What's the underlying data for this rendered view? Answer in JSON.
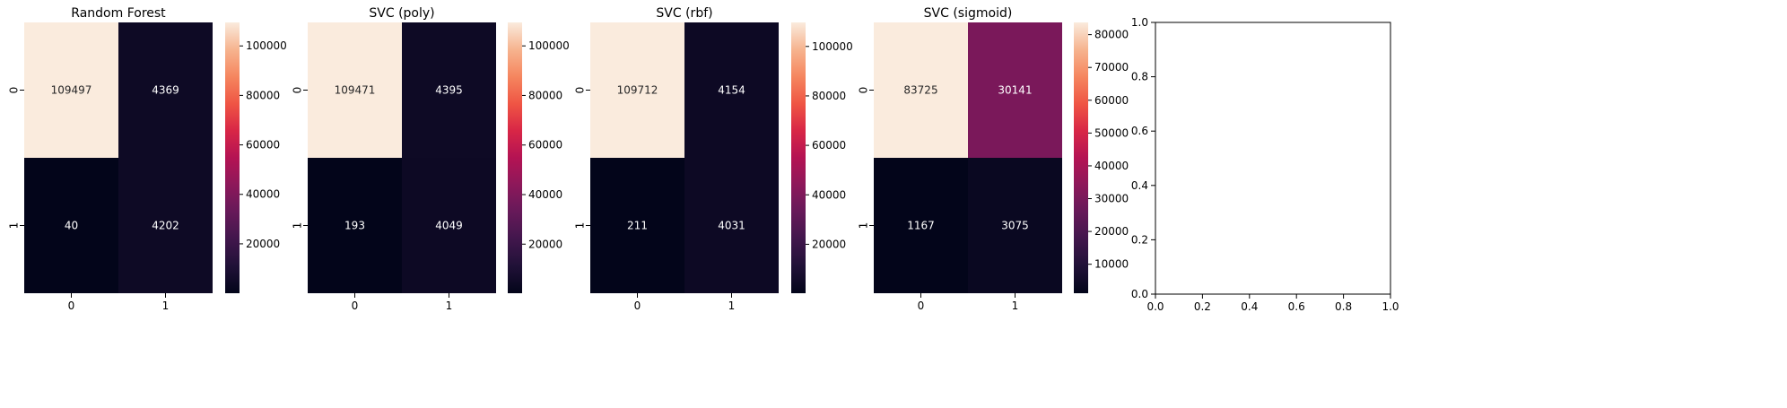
{
  "chart_data": [
    {
      "type": "heatmap",
      "title": "Random Forest",
      "x_ticks": [
        "0",
        "1"
      ],
      "y_ticks": [
        "0",
        "1"
      ],
      "values": [
        [
          109497,
          4369
        ],
        [
          40,
          4202
        ]
      ],
      "annotations": [
        [
          "109497",
          "4369"
        ],
        [
          "40",
          "4202"
        ]
      ],
      "colorbar": {
        "min": 40,
        "max": 109497,
        "ticks": [
          20000,
          40000,
          60000,
          80000,
          100000
        ],
        "tick_labels": [
          "20000",
          "40000",
          "60000",
          "80000",
          "100000"
        ]
      },
      "colormap": "rocket"
    },
    {
      "type": "heatmap",
      "title": "SVC (poly)",
      "x_ticks": [
        "0",
        "1"
      ],
      "y_ticks": [
        "0",
        "1"
      ],
      "values": [
        [
          109471,
          4395
        ],
        [
          193,
          4049
        ]
      ],
      "annotations": [
        [
          "109471",
          "4395"
        ],
        [
          "193",
          "4049"
        ]
      ],
      "colorbar": {
        "min": 193,
        "max": 109471,
        "ticks": [
          20000,
          40000,
          60000,
          80000,
          100000
        ],
        "tick_labels": [
          "20000",
          "40000",
          "60000",
          "80000",
          "100000"
        ]
      },
      "colormap": "rocket"
    },
    {
      "type": "heatmap",
      "title": "SVC (rbf)",
      "x_ticks": [
        "0",
        "1"
      ],
      "y_ticks": [
        "0",
        "1"
      ],
      "values": [
        [
          109712,
          4154
        ],
        [
          211,
          4031
        ]
      ],
      "annotations": [
        [
          "109712",
          "4154"
        ],
        [
          "211",
          "4031"
        ]
      ],
      "colorbar": {
        "min": 211,
        "max": 109712,
        "ticks": [
          20000,
          40000,
          60000,
          80000,
          100000
        ],
        "tick_labels": [
          "20000",
          "40000",
          "60000",
          "80000",
          "100000"
        ]
      },
      "colormap": "rocket"
    },
    {
      "type": "heatmap",
      "title": "SVC (sigmoid)",
      "x_ticks": [
        "0",
        "1"
      ],
      "y_ticks": [
        "0",
        "1"
      ],
      "values": [
        [
          83725,
          30141
        ],
        [
          1167,
          3075
        ]
      ],
      "annotations": [
        [
          "83725",
          "30141"
        ],
        [
          "1167",
          "3075"
        ]
      ],
      "colorbar": {
        "min": 1167,
        "max": 83725,
        "ticks": [
          10000,
          20000,
          30000,
          40000,
          50000,
          60000,
          70000,
          80000
        ],
        "tick_labels": [
          "10000",
          "20000",
          "30000",
          "40000",
          "50000",
          "60000",
          "70000",
          "80000"
        ]
      },
      "colormap": "rocket"
    },
    {
      "type": "empty",
      "title": "",
      "xlim": [
        0,
        1
      ],
      "ylim": [
        0,
        1
      ],
      "x_ticks": [
        "0.0",
        "0.2",
        "0.4",
        "0.6",
        "0.8",
        "1.0"
      ],
      "y_ticks": [
        "0.0",
        "0.2",
        "0.4",
        "0.6",
        "0.8",
        "1.0"
      ]
    }
  ]
}
